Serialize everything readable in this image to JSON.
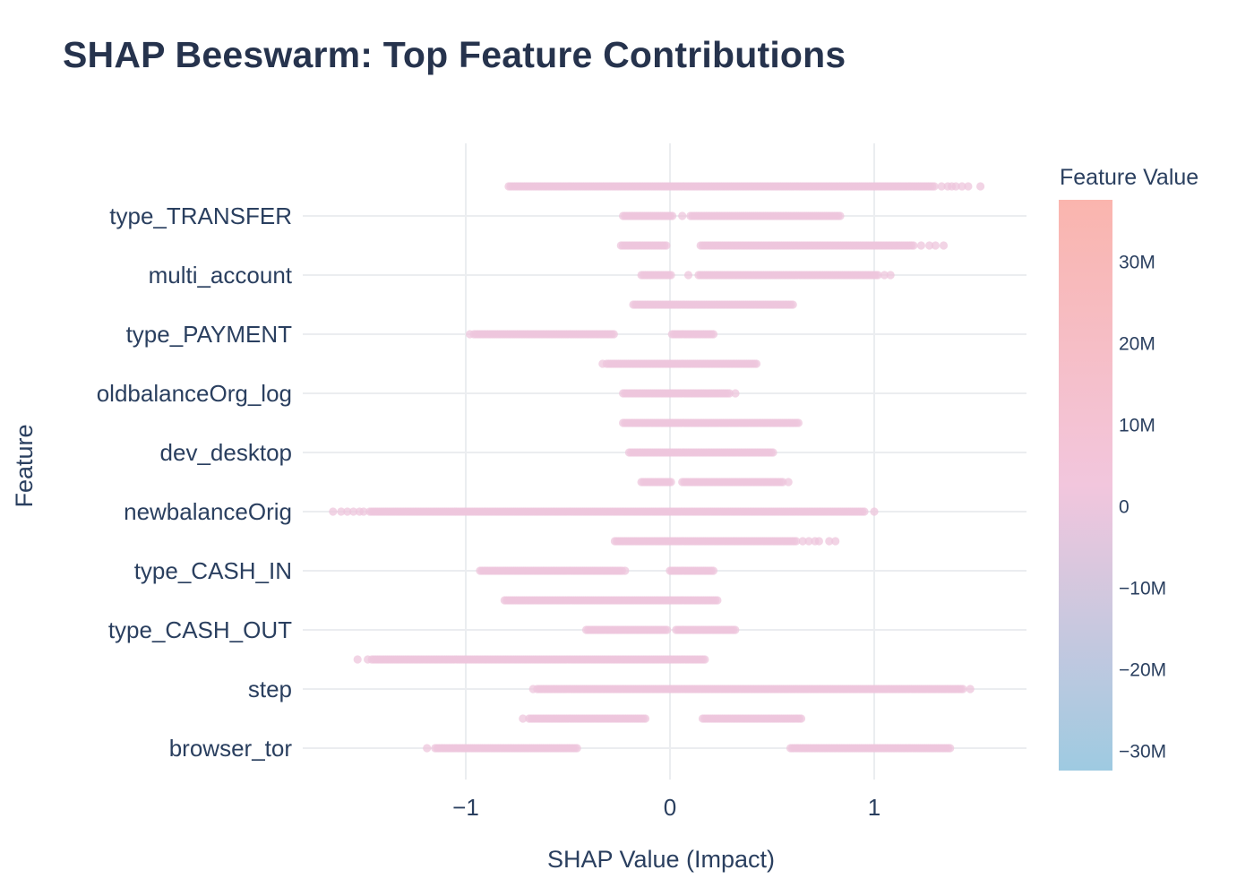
{
  "chart_data": {
    "type": "scatter",
    "title": "SHAP Beeswarm: Top Feature Contributions",
    "xlabel": "SHAP Value (Impact)",
    "ylabel": "Feature",
    "xlim": [
      -1.85,
      1.75
    ],
    "x_ticks": [
      "−1",
      "0",
      "1"
    ],
    "x_tick_values": [
      -1,
      0,
      1
    ],
    "grid": true,
    "point_color": "#edc5dc",
    "point_opacity": 0.75,
    "features": [
      {
        "name": "type_TRANSFER",
        "label": "type_TRANSFER"
      },
      {
        "name": "multi_account",
        "label": "multi_account"
      },
      {
        "name": "type_PAYMENT",
        "label": "type_PAYMENT"
      },
      {
        "name": "oldbalanceOrg_log",
        "label": "oldbalanceOrg_log"
      },
      {
        "name": "dev_desktop",
        "label": "dev_desktop"
      },
      {
        "name": "newbalanceOrig",
        "label": "newbalanceOrig"
      },
      {
        "name": "type_CASH_IN",
        "label": "type_CASH_IN"
      },
      {
        "name": "type_CASH_OUT",
        "label": "type_CASH_OUT"
      },
      {
        "name": "step",
        "label": "step"
      },
      {
        "name": "browser_tor",
        "label": "browser_tor"
      }
    ],
    "rows": [
      {
        "y": 10.5,
        "ranges": [
          [
            -0.79,
            1.3
          ]
        ],
        "extras": [
          1.33,
          1.36,
          1.38,
          1.4,
          1.43,
          1.46,
          1.52
        ]
      },
      {
        "y": 10.0,
        "ranges": [
          [
            -0.23,
            0.02
          ],
          [
            0.1,
            0.84
          ]
        ],
        "extras": [
          0.06
        ]
      },
      {
        "y": 9.5,
        "ranges": [
          [
            -0.24,
            -0.01
          ],
          [
            0.16,
            1.2
          ]
        ],
        "extras": [
          0.15,
          1.23,
          1.27,
          1.3,
          1.34
        ]
      },
      {
        "y": 9.0,
        "ranges": [
          [
            -0.14,
            0.01
          ],
          [
            0.14,
            1.02
          ]
        ],
        "extras": [
          0.09,
          1.05,
          1.08
        ]
      },
      {
        "y": 8.5,
        "ranges": [
          [
            -0.18,
            0.61
          ]
        ],
        "extras": []
      },
      {
        "y": 8.0,
        "ranges": [
          [
            -0.96,
            -0.27
          ],
          [
            0.01,
            0.22
          ]
        ],
        "extras": [
          -0.98
        ]
      },
      {
        "y": 7.5,
        "ranges": [
          [
            -0.31,
            0.43
          ]
        ],
        "extras": [
          -0.33
        ]
      },
      {
        "y": 7.0,
        "ranges": [
          [
            -0.23,
            0.3
          ]
        ],
        "extras": [
          0.32
        ]
      },
      {
        "y": 6.5,
        "ranges": [
          [
            -0.23,
            0.63
          ]
        ],
        "extras": []
      },
      {
        "y": 6.0,
        "ranges": [
          [
            -0.2,
            0.51
          ]
        ],
        "extras": []
      },
      {
        "y": 5.5,
        "ranges": [
          [
            -0.14,
            0.01
          ],
          [
            0.06,
            0.56
          ]
        ],
        "extras": [
          0.58
        ]
      },
      {
        "y": 5.0,
        "ranges": [
          [
            -1.47,
            0.96
          ]
        ],
        "extras": [
          -1.65,
          -1.61,
          -1.58,
          -1.55,
          -1.52,
          -1.5,
          1.0
        ]
      },
      {
        "y": 4.5,
        "ranges": [
          [
            -0.27,
            0.62
          ]
        ],
        "extras": [
          0.65,
          0.68,
          0.71,
          0.73,
          0.78,
          0.81
        ]
      },
      {
        "y": 4.0,
        "ranges": [
          [
            -0.93,
            -0.23
          ],
          [
            0.0,
            0.22
          ]
        ],
        "extras": [
          -0.22
        ]
      },
      {
        "y": 3.5,
        "ranges": [
          [
            -0.81,
            0.24
          ]
        ],
        "extras": []
      },
      {
        "y": 3.0,
        "ranges": [
          [
            -0.41,
            -0.01
          ],
          [
            0.03,
            0.32
          ]
        ],
        "extras": []
      },
      {
        "y": 2.5,
        "ranges": [
          [
            -1.46,
            0.18
          ]
        ],
        "extras": [
          -1.53,
          -1.48
        ]
      },
      {
        "y": 2.0,
        "ranges": [
          [
            -0.65,
            1.44
          ]
        ],
        "extras": [
          -0.67,
          1.47
        ]
      },
      {
        "y": 1.5,
        "ranges": [
          [
            -0.69,
            -0.12
          ],
          [
            0.16,
            0.65
          ]
        ],
        "extras": [
          -0.72
        ]
      },
      {
        "y": 1.0,
        "ranges": [
          [
            -1.15,
            -0.45
          ],
          [
            0.59,
            1.38
          ]
        ],
        "extras": [
          -1.19
        ]
      }
    ],
    "colorbar": {
      "title": "Feature Value",
      "range": [
        -32500000,
        37500000
      ],
      "ticks": [
        {
          "value": 30000000,
          "label": "30M"
        },
        {
          "value": 20000000,
          "label": "20M"
        },
        {
          "value": 10000000,
          "label": "10M"
        },
        {
          "value": 0,
          "label": "0"
        },
        {
          "value": -10000000,
          "label": "−10M"
        },
        {
          "value": -20000000,
          "label": "−20M"
        },
        {
          "value": -30000000,
          "label": "−30M"
        }
      ],
      "color_top": "#fab5ae",
      "color_mid": "#f2c6dd",
      "color_bottom": "#9ecae1"
    }
  }
}
